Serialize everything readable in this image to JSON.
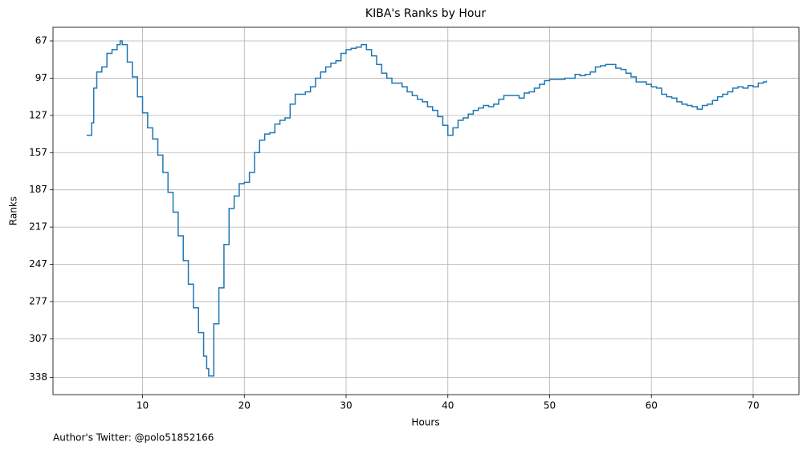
{
  "chart_data": {
    "type": "step",
    "title": "KIBA's Ranks by Hour",
    "xlabel": "Hours",
    "ylabel": "Ranks",
    "footer": "Author's Twitter: @polo51852166",
    "color": "#1f77b4",
    "grid": true,
    "xlim": [
      1.2,
      74.5
    ],
    "xticks": [
      10,
      20,
      30,
      40,
      50,
      60,
      70
    ],
    "ylim": [
      352,
      56
    ],
    "yticks": [
      67,
      97,
      127,
      157,
      187,
      217,
      247,
      277,
      307,
      338
    ],
    "x": [
      4.5,
      5,
      5.2,
      5.5,
      6,
      6.5,
      7,
      7.5,
      7.8,
      8,
      8.5,
      9,
      9.5,
      10,
      10.5,
      11,
      11.5,
      12,
      12.5,
      13,
      13.5,
      14,
      14.5,
      15,
      15.5,
      16,
      16.3,
      16.5,
      17,
      17.5,
      18,
      18.5,
      19,
      19.5,
      20,
      20.5,
      21,
      21.5,
      22,
      22.5,
      23,
      23.5,
      24,
      24.5,
      25,
      25.5,
      26,
      26.5,
      27,
      27.5,
      28,
      28.5,
      29,
      29.5,
      30,
      30.5,
      31,
      31.5,
      32,
      32.5,
      33,
      33.5,
      34,
      34.5,
      35,
      35.5,
      36,
      36.5,
      37,
      37.5,
      38,
      38.5,
      39,
      39.5,
      40,
      40.5,
      41,
      41.5,
      42,
      42.5,
      43,
      43.5,
      44,
      44.5,
      45,
      45.5,
      46,
      46.5,
      47,
      47.5,
      48,
      48.5,
      49,
      49.5,
      50,
      50.5,
      51,
      51.5,
      52,
      52.5,
      53,
      53.5,
      54,
      54.5,
      55,
      55.5,
      56,
      56.5,
      57,
      57.5,
      58,
      58.5,
      59,
      59.5,
      60,
      60.5,
      61,
      61.5,
      62,
      62.5,
      63,
      63.5,
      64,
      64.5,
      65,
      65.5,
      66,
      66.5,
      67,
      67.5,
      68,
      68.5,
      69,
      69.5,
      70,
      70.5,
      71,
      71.3
    ],
    "values": [
      143,
      133,
      105,
      92,
      88,
      77,
      74,
      70,
      67,
      70,
      84,
      96,
      112,
      125,
      137,
      146,
      159,
      173,
      189,
      205,
      224,
      244,
      263,
      282,
      302,
      321,
      331,
      337,
      295,
      266,
      231,
      202,
      192,
      182,
      181,
      173,
      157,
      147,
      142,
      141,
      134,
      131,
      129,
      118,
      110,
      110,
      108,
      104,
      97,
      92,
      88,
      85,
      83,
      77,
      74,
      73,
      72,
      70,
      74,
      79,
      86,
      93,
      97,
      101,
      101,
      104,
      108,
      111,
      114,
      116,
      120,
      123,
      128,
      135,
      143,
      137,
      131,
      129,
      126,
      123,
      121,
      119,
      120,
      118,
      114,
      111,
      111,
      111,
      113,
      109,
      108,
      105,
      102,
      99,
      98,
      98,
      98,
      97,
      97,
      94,
      95,
      94,
      92,
      88,
      87,
      86,
      86,
      89,
      90,
      93,
      96,
      100,
      100,
      102,
      104,
      105,
      110,
      112,
      113,
      116,
      118,
      119,
      120,
      122,
      119,
      118,
      115,
      112,
      110,
      108,
      105,
      104,
      105,
      103,
      104,
      101,
      100,
      99
    ]
  }
}
